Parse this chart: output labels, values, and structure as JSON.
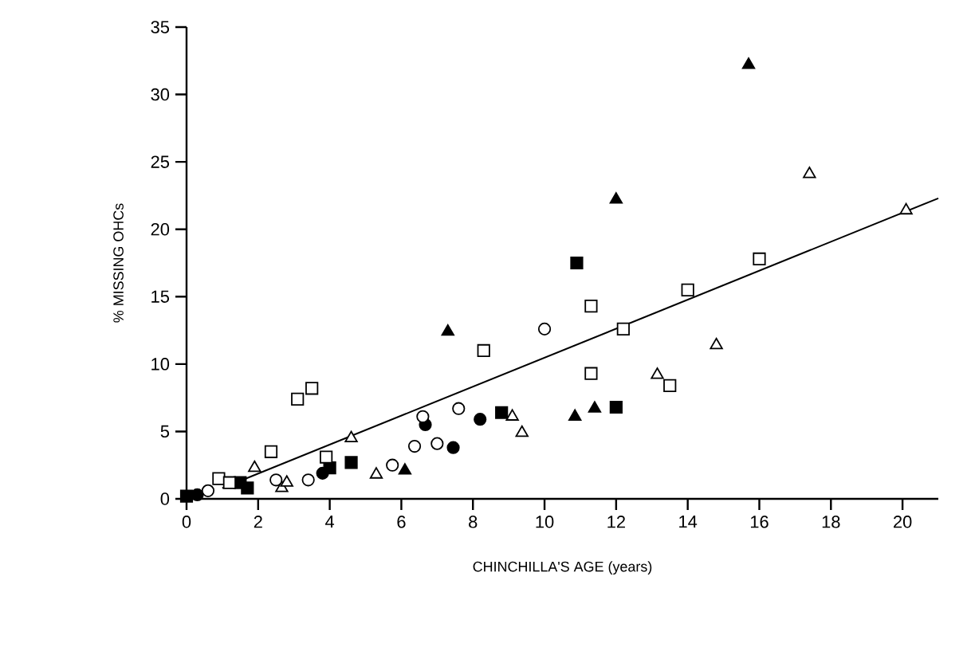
{
  "chart_data": {
    "type": "scatter",
    "xlabel": "CHINCHILLA'S AGE (years)",
    "ylabel": "% MISSING OHCs",
    "xlim": [
      0,
      21
    ],
    "xticks": [
      0,
      2,
      4,
      6,
      8,
      10,
      12,
      14,
      16,
      18,
      20
    ],
    "ylim": [
      0,
      35
    ],
    "yticks": [
      0,
      5,
      10,
      15,
      20,
      25,
      30,
      35
    ],
    "series": [
      {
        "marker": "triangle",
        "color": "#000000",
        "x": [
          15.7,
          12.0,
          7.3,
          10.85,
          11.4,
          6.1
        ],
        "values": [
          32.2,
          22.2,
          12.4,
          6.1,
          6.7,
          2.1
        ]
      },
      {
        "marker": "triangle",
        "color": "#ffffff",
        "x": [
          17.4,
          20.1,
          14.8,
          13.15,
          9.1,
          9.37,
          4.6,
          1.9,
          2.66,
          5.3,
          2.8
        ],
        "values": [
          24.1,
          21.4,
          11.4,
          9.2,
          6.1,
          4.9,
          4.5,
          2.3,
          0.8,
          1.8,
          1.2
        ]
      },
      {
        "marker": "square",
        "color": "#000000",
        "x": [
          10.9,
          12.0,
          8.8,
          4.0,
          4.6,
          1.5,
          1.7,
          0.0
        ],
        "values": [
          17.5,
          6.8,
          6.4,
          2.3,
          2.7,
          1.2,
          0.8,
          0.2
        ]
      },
      {
        "marker": "square",
        "color": "#ffffff",
        "x": [
          16.0,
          14.0,
          12.2,
          11.3,
          8.3,
          13.5,
          3.1,
          3.5,
          2.36,
          3.9,
          0.9,
          1.2,
          11.3
        ],
        "values": [
          17.8,
          15.5,
          12.6,
          9.3,
          11.0,
          8.4,
          7.4,
          8.2,
          3.5,
          3.1,
          1.5,
          1.2,
          14.3
        ]
      },
      {
        "marker": "circle",
        "color": "#000000",
        "x": [
          8.2,
          6.67,
          7.45,
          3.8,
          0.3
        ],
        "values": [
          5.9,
          5.5,
          3.8,
          1.9,
          0.3
        ]
      },
      {
        "marker": "circle",
        "color": "#ffffff",
        "x": [
          10.0,
          7.6,
          6.6,
          6.37,
          7.0,
          5.75,
          3.4,
          2.5,
          0.6
        ],
        "values": [
          12.6,
          6.7,
          6.1,
          3.9,
          4.1,
          2.5,
          1.4,
          1.4,
          0.6
        ]
      },
      {
        "type": "line",
        "color": "#000000",
        "x": [
          1.0,
          21.0
        ],
        "values": [
          0.8,
          22.3
        ]
      }
    ]
  }
}
